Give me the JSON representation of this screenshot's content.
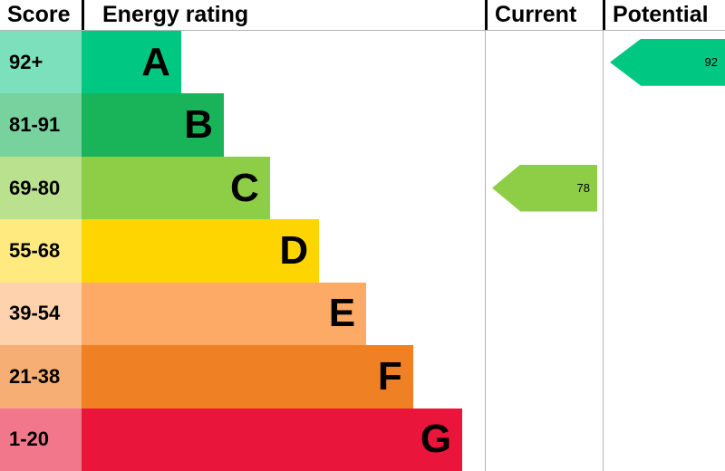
{
  "header": {
    "score": "Score",
    "energy_rating": "Energy rating",
    "current": "Current",
    "potential": "Potential"
  },
  "chart_data": {
    "type": "bar",
    "subtype": "epc-energy-efficiency-rating",
    "orientation": "horizontal",
    "columns": [
      "Score",
      "Energy rating",
      "Current",
      "Potential"
    ],
    "bands": [
      {
        "score": "92+",
        "letter": "A",
        "color": "#00c781",
        "score_bg": "#7ce0bd",
        "width_pct": 24.7
      },
      {
        "score": "81-91",
        "letter": "B",
        "color": "#19b459",
        "score_bg": "#77d29e",
        "width_pct": 35.3
      },
      {
        "score": "69-80",
        "letter": "C",
        "color": "#8dce46",
        "score_bg": "#b9e18e",
        "width_pct": 46.7
      },
      {
        "score": "55-68",
        "letter": "D",
        "color": "#ffd500",
        "score_bg": "#ffea80",
        "width_pct": 58.9
      },
      {
        "score": "39-54",
        "letter": "E",
        "color": "#fcaa65",
        "score_bg": "#fdd2ad",
        "width_pct": 70.6
      },
      {
        "score": "21-38",
        "letter": "F",
        "color": "#ef8023",
        "score_bg": "#f6ae74",
        "width_pct": 82.2
      },
      {
        "score": "1-20",
        "letter": "G",
        "color": "#e9153b",
        "score_bg": "#f2778b",
        "width_pct": 94.4
      }
    ],
    "current": {
      "value": 78,
      "band": "C",
      "row": 2,
      "color": "#8dce46"
    },
    "potential": {
      "value": 92,
      "band": "A",
      "row": 0,
      "color": "#00c781"
    },
    "grid": "column dividers only",
    "legend": "none"
  }
}
